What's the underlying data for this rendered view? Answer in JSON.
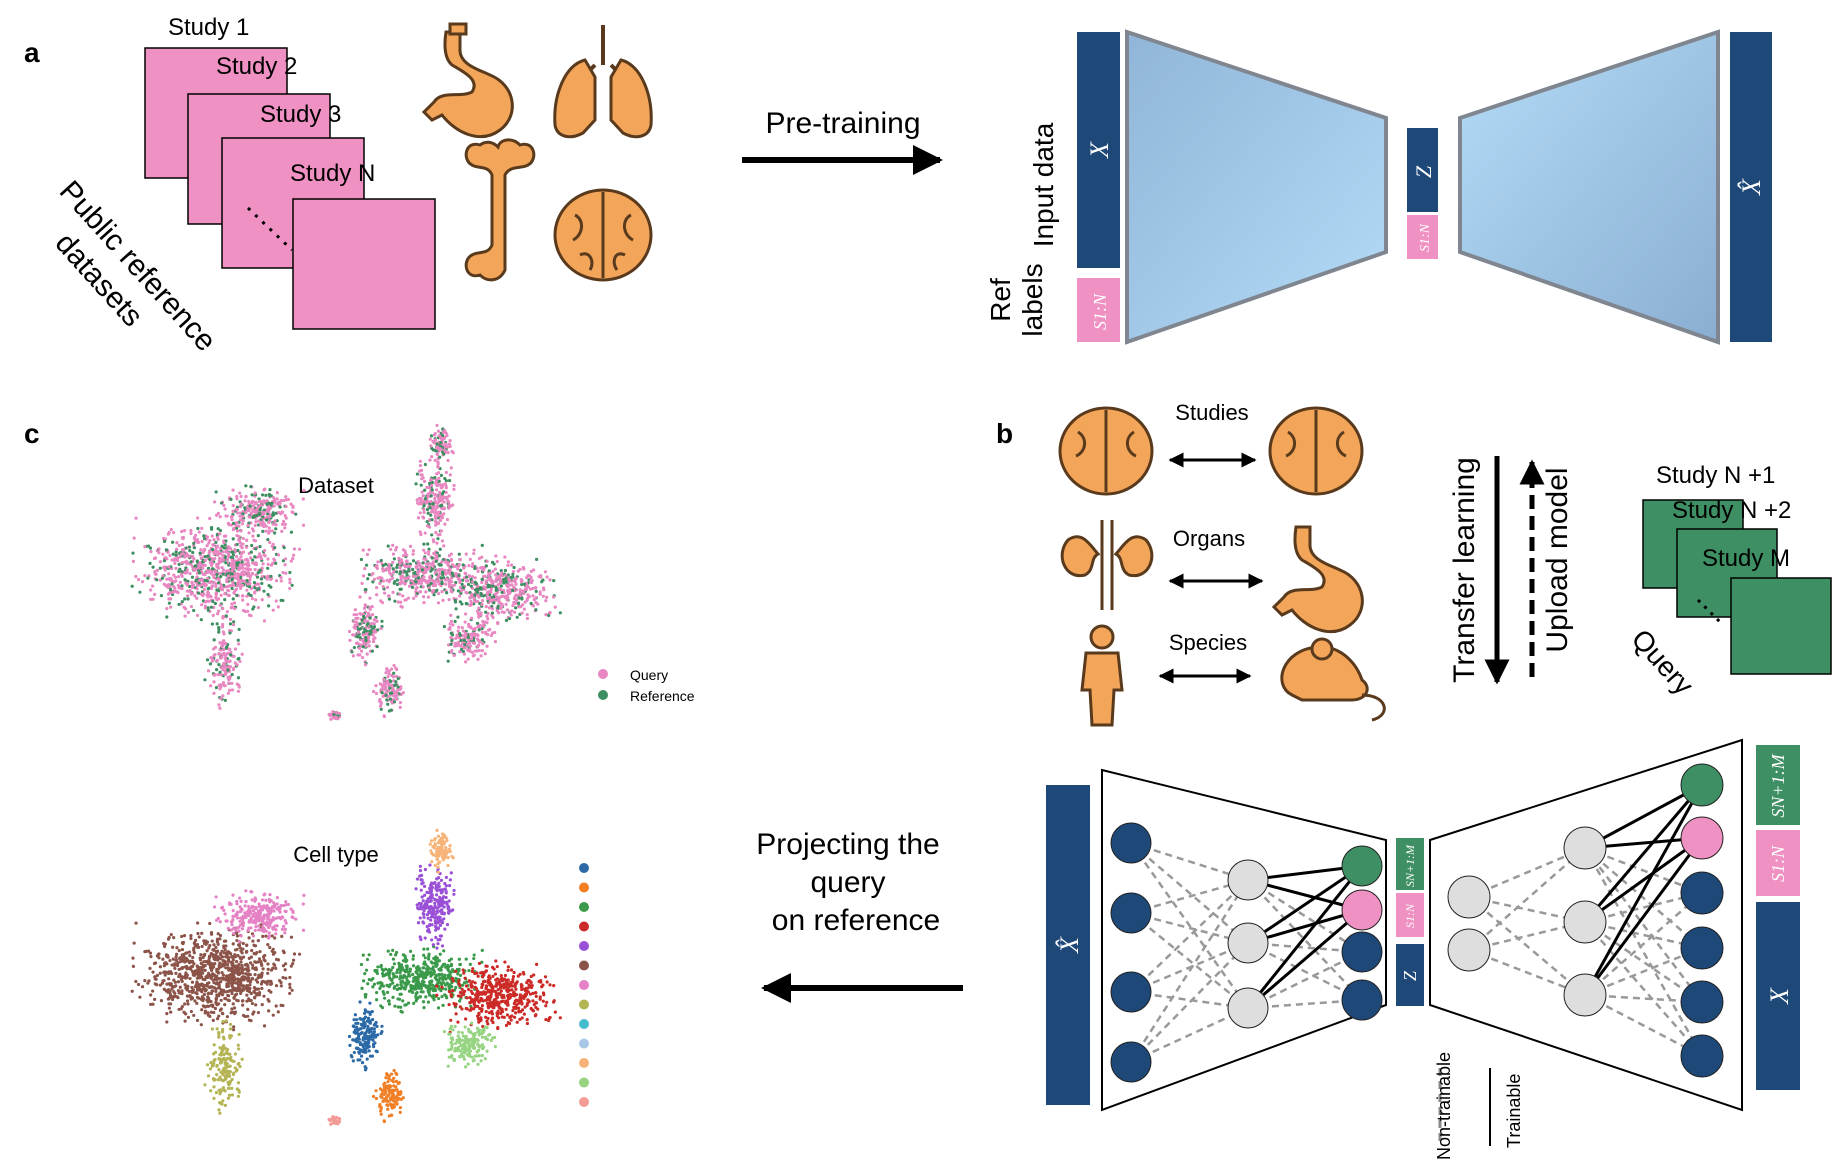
{
  "panels": {
    "a": {
      "label": "a",
      "studies": [
        "Study 1",
        "Study 2",
        "Study 3",
        "Study N"
      ],
      "public_reference_line1": "Public reference",
      "public_reference_line2": "datasets",
      "arrow_label": "Pre-training",
      "input_data": "Input data",
      "ref_labels_line1": "Ref",
      "ref_labels_line2": "labels",
      "x_symbol": "X",
      "z_symbol": "Z",
      "x_hat_symbol": "X̂",
      "s_symbol": "S1:N"
    },
    "b": {
      "label": "b",
      "studies": "Studies",
      "organs": "Organs",
      "species": "Species",
      "transfer_learning": "Transfer learning",
      "upload_model": "Upload model",
      "query_studies": [
        "Study N +1",
        "Study N +2",
        "Study M"
      ],
      "query": "Query",
      "x_hat_symbol": "X̂",
      "x_symbol": "X",
      "z_symbol": "Z",
      "s_ref": "S1:N",
      "s_query": "SN+1:M",
      "non_trainable": "Non-trainable",
      "trainable": "Trainable"
    },
    "c": {
      "label": "c",
      "title_dataset": "Dataset",
      "title_celltype": "Cell type",
      "legend": [
        {
          "name": "Query",
          "color": "#e887c1"
        },
        {
          "name": "Reference",
          "color": "#3d8f62"
        }
      ],
      "celltype_colors": [
        "#2b6aa7",
        "#f07f26",
        "#3a9a4a",
        "#cc2a27",
        "#9a50d6",
        "#8c5449",
        "#e582c5",
        "#b4b454",
        "#45bccf",
        "#a8c6e6",
        "#f8b478",
        "#96d482",
        "#f39b97"
      ],
      "arrow_label_line1": "Projecting the",
      "arrow_label_line2": "query",
      "arrow_label_line3": "on reference"
    }
  },
  "colors": {
    "navy": "#1d4878",
    "pink": "#ef91c2",
    "green": "#3e8f63",
    "organ": "#f3a55a",
    "blue_light": "#a9d5f6",
    "blue_mid": "#8eb2d6",
    "grey_node": "#dedede"
  }
}
